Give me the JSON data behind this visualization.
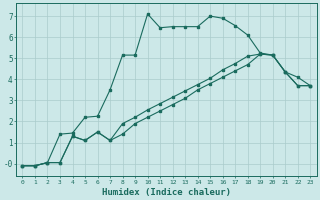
{
  "xlabel": "Humidex (Indice chaleur)",
  "bg_color": "#cce8e8",
  "grid_color": "#aacccc",
  "line_color": "#1a6b5e",
  "xlim": [
    -0.5,
    23.5
  ],
  "ylim": [
    -0.6,
    7.6
  ],
  "yticks": [
    0,
    1,
    2,
    3,
    4,
    5,
    6,
    7
  ],
  "ytick_labels": [
    "-0",
    "1",
    "2",
    "3",
    "4",
    "5",
    "6",
    "7"
  ],
  "xticks": [
    0,
    1,
    2,
    3,
    4,
    5,
    6,
    7,
    8,
    9,
    10,
    11,
    12,
    13,
    14,
    15,
    16,
    17,
    18,
    19,
    20,
    21,
    22,
    23
  ],
  "line1_x": [
    0,
    1,
    2,
    3,
    4,
    5,
    6,
    7,
    8,
    9,
    10,
    11,
    12,
    13,
    14,
    15,
    16,
    17,
    18,
    19,
    20,
    21,
    22,
    23
  ],
  "line1_y": [
    -0.1,
    -0.1,
    0.05,
    1.4,
    1.45,
    2.2,
    2.25,
    3.5,
    5.15,
    5.15,
    7.1,
    6.45,
    6.5,
    6.5,
    6.5,
    7.0,
    6.9,
    6.55,
    6.1,
    5.25,
    5.15,
    4.35,
    4.1,
    3.7
  ],
  "line2_x": [
    0,
    1,
    2,
    3,
    4,
    5,
    6,
    7,
    8,
    9,
    10,
    11,
    12,
    13,
    14,
    15,
    16,
    17,
    18,
    19,
    20,
    21,
    22,
    23
  ],
  "line2_y": [
    -0.1,
    -0.1,
    0.05,
    0.05,
    1.3,
    1.1,
    1.5,
    1.1,
    1.4,
    1.9,
    2.2,
    2.5,
    2.8,
    3.1,
    3.5,
    3.8,
    4.1,
    4.4,
    4.7,
    5.2,
    5.15,
    4.35,
    3.7,
    3.7
  ],
  "line3_x": [
    0,
    1,
    2,
    3,
    4,
    5,
    6,
    7,
    8,
    9,
    10,
    11,
    12,
    13,
    14,
    15,
    16,
    17,
    18,
    19,
    20,
    21,
    22,
    23
  ],
  "line3_y": [
    -0.1,
    -0.1,
    0.05,
    0.05,
    1.3,
    1.1,
    1.5,
    1.1,
    1.9,
    2.2,
    2.55,
    2.85,
    3.15,
    3.45,
    3.75,
    4.05,
    4.45,
    4.75,
    5.1,
    5.2,
    5.15,
    4.35,
    3.7,
    3.7
  ]
}
